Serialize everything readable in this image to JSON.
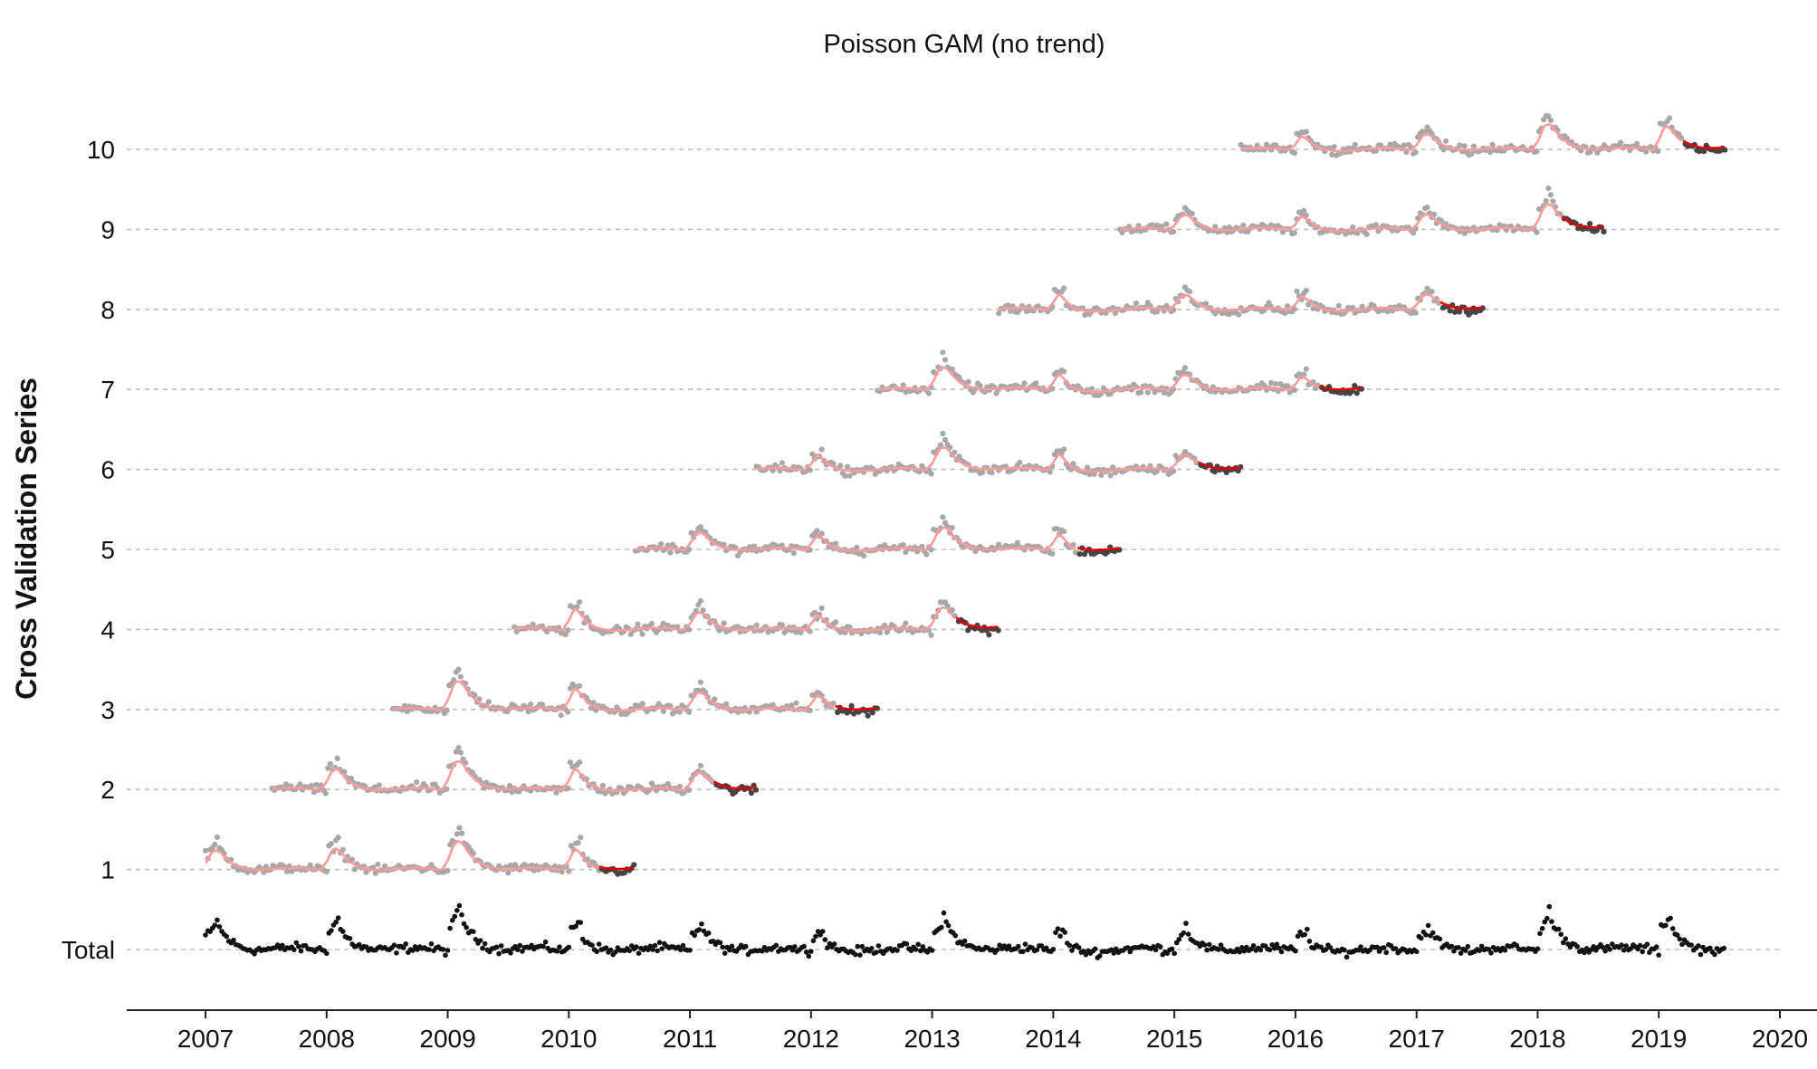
{
  "chart_data": {
    "type": "scatter",
    "title": "Poisson GAM (no trend)",
    "xlabel": "",
    "ylabel": "Cross Validation Series",
    "x_ticks": [
      "2007",
      "2008",
      "2009",
      "2010",
      "2011",
      "2012",
      "2013",
      "2014",
      "2015",
      "2016",
      "2017",
      "2018",
      "2019",
      "2020"
    ],
    "xlim": [
      2006.6,
      2020.0
    ],
    "y_categories": [
      "Total",
      "1",
      "2",
      "3",
      "4",
      "5",
      "6",
      "7",
      "8",
      "9",
      "10"
    ],
    "grid": "horizontal dashed",
    "colors": {
      "total": "#111111",
      "training": "#a8a8a8",
      "test": "#444444",
      "fit": "#ff9a9a",
      "forecast": "#e00000"
    },
    "seasonal_peaks": [
      {
        "year": 2007,
        "amp": 0.35
      },
      {
        "year": 2008,
        "amp": 0.33
      },
      {
        "year": 2009,
        "amp": 0.5
      },
      {
        "year": 2010,
        "amp": 0.22
      },
      {
        "year": 2011,
        "amp": 0.3
      },
      {
        "year": 2012,
        "amp": 0.17
      },
      {
        "year": 2013,
        "amp": 0.42
      },
      {
        "year": 2014,
        "amp": 0.12
      },
      {
        "year": 2015,
        "amp": 0.28
      },
      {
        "year": 2016,
        "amp": 0.16
      },
      {
        "year": 2017,
        "amp": 0.28
      },
      {
        "year": 2018,
        "amp": 0.45
      },
      {
        "year": 2019,
        "amp": 0.33
      }
    ],
    "total_series": {
      "category": "Total",
      "start": 2007.0,
      "end": 2019.55
    },
    "cv_series": [
      {
        "category": "1",
        "start": 2007.0,
        "train_end": 2010.25,
        "end": 2010.55
      },
      {
        "category": "2",
        "start": 2007.55,
        "train_end": 2011.2,
        "end": 2011.55
      },
      {
        "category": "3",
        "start": 2008.55,
        "train_end": 2012.2,
        "end": 2012.55
      },
      {
        "category": "4",
        "start": 2009.55,
        "train_end": 2013.2,
        "end": 2013.55
      },
      {
        "category": "5",
        "start": 2010.55,
        "train_end": 2014.2,
        "end": 2014.55
      },
      {
        "category": "6",
        "start": 2011.55,
        "train_end": 2015.2,
        "end": 2015.55
      },
      {
        "category": "7",
        "start": 2012.55,
        "train_end": 2016.2,
        "end": 2016.55
      },
      {
        "category": "8",
        "start": 2013.55,
        "train_end": 2017.2,
        "end": 2017.55
      },
      {
        "category": "9",
        "start": 2014.55,
        "train_end": 2018.2,
        "end": 2018.55
      },
      {
        "category": "10",
        "start": 2015.55,
        "train_end": 2019.2,
        "end": 2019.55
      }
    ]
  }
}
